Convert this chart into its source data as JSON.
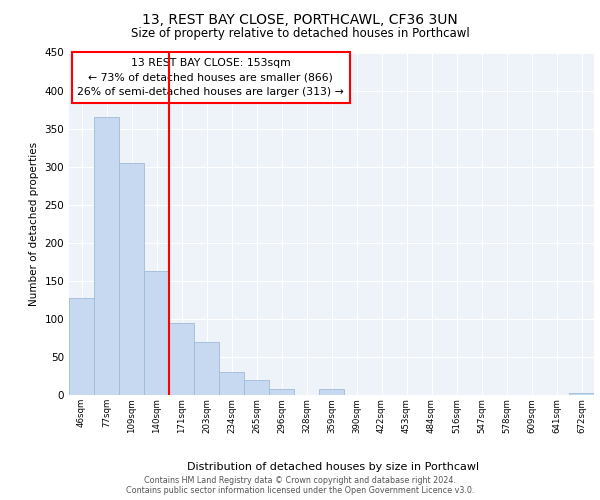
{
  "title": "13, REST BAY CLOSE, PORTHCAWL, CF36 3UN",
  "subtitle": "Size of property relative to detached houses in Porthcawl",
  "xlabel": "Distribution of detached houses by size in Porthcawl",
  "ylabel": "Number of detached properties",
  "bar_labels": [
    "46sqm",
    "77sqm",
    "109sqm",
    "140sqm",
    "171sqm",
    "203sqm",
    "234sqm",
    "265sqm",
    "296sqm",
    "328sqm",
    "359sqm",
    "390sqm",
    "422sqm",
    "453sqm",
    "484sqm",
    "516sqm",
    "547sqm",
    "578sqm",
    "609sqm",
    "641sqm",
    "672sqm"
  ],
  "bar_values": [
    128,
    365,
    305,
    163,
    95,
    70,
    30,
    20,
    8,
    0,
    8,
    0,
    0,
    0,
    0,
    0,
    0,
    0,
    0,
    0,
    3
  ],
  "bar_color": "#c6d9f0",
  "bar_edge_color": "#a0bcd8",
  "reference_line_color": "red",
  "annotation_title": "13 REST BAY CLOSE: 153sqm",
  "annotation_line1": "← 73% of detached houses are smaller (866)",
  "annotation_line2": "26% of semi-detached houses are larger (313) →",
  "annotation_box_color": "white",
  "annotation_box_edge_color": "red",
  "ylim": [
    0,
    450
  ],
  "yticks": [
    0,
    50,
    100,
    150,
    200,
    250,
    300,
    350,
    400,
    450
  ],
  "background_color": "#eef2f9",
  "footer_line1": "Contains HM Land Registry data © Crown copyright and database right 2024.",
  "footer_line2": "Contains public sector information licensed under the Open Government Licence v3.0."
}
